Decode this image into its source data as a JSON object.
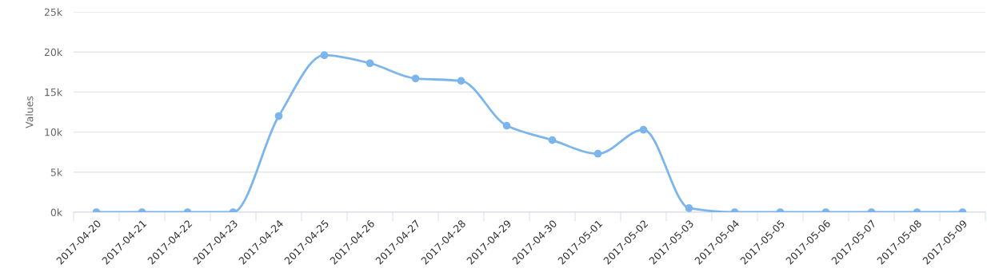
{
  "chart_data": {
    "type": "line",
    "ylabel": "Values",
    "categories": [
      "2017-04-20",
      "2017-04-21",
      "2017-04-22",
      "2017-04-23",
      "2017-04-24",
      "2017-04-25",
      "2017-04-26",
      "2017-04-27",
      "2017-04-28",
      "2017-04-29",
      "2017-04-30",
      "2017-05-01",
      "2017-05-02",
      "2017-05-03",
      "2017-05-04",
      "2017-05-05",
      "2017-05-06",
      "2017-05-07",
      "2017-05-08",
      "2017-05-09"
    ],
    "series": [
      {
        "color": "#7cb5ec",
        "values": [
          0,
          0,
          0,
          0,
          12000,
          19600,
          18600,
          16700,
          16400,
          10800,
          9000,
          7300,
          10300,
          500,
          0,
          0,
          0,
          0,
          0,
          0
        ]
      }
    ],
    "ylim": [
      0,
      25000
    ],
    "yticks": [
      {
        "value": 0,
        "label": "0k"
      },
      {
        "value": 5000,
        "label": "5k"
      },
      {
        "value": 10000,
        "label": "10k"
      },
      {
        "value": 15000,
        "label": "15k"
      },
      {
        "value": 20000,
        "label": "20k"
      },
      {
        "value": 25000,
        "label": "25k"
      }
    ],
    "grid": "y",
    "marker": "circle",
    "line_style": "solid"
  }
}
